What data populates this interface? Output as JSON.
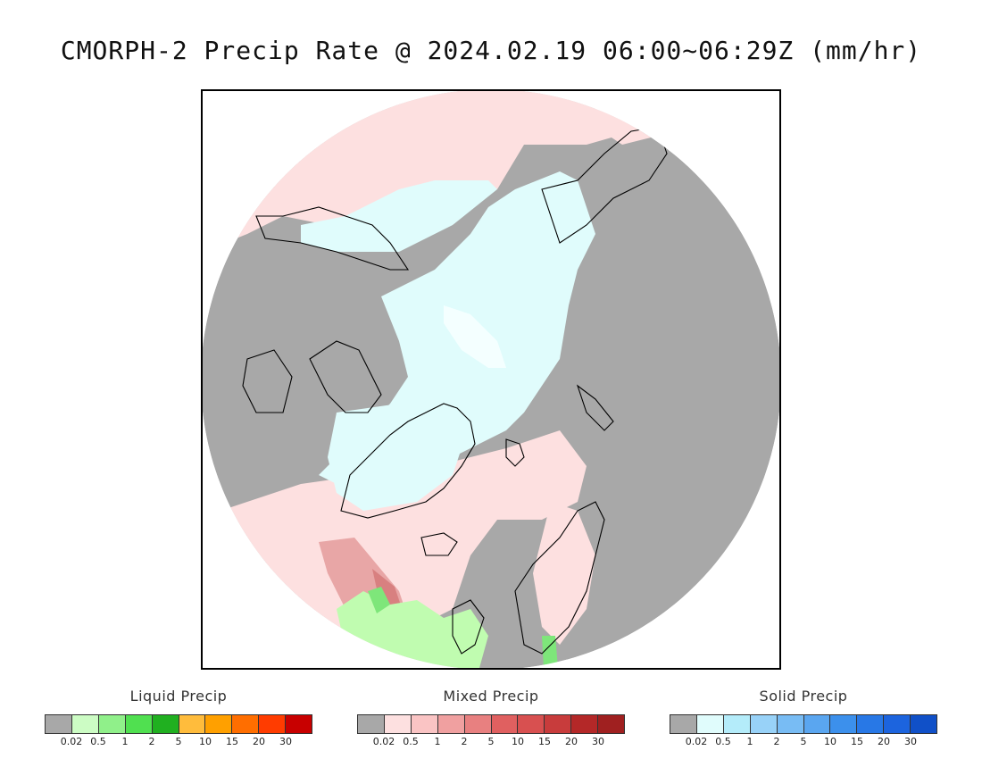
{
  "title": "CMORPH-2 Precip Rate @ 2024.02.19 06:00~06:29Z (mm/hr)",
  "map": {
    "projection": "north-polar-stereographic",
    "colors": {
      "no_precip": "#a8a8a8",
      "mixed_light": "#fde0e0",
      "mixed_moderate": "#f4b6b6",
      "mixed_heavy": "#d88080",
      "solid_light": "#e0fcfc",
      "solid_very_light": "#f4ffff",
      "liquid_light": "#c0fcb0",
      "liquid_moderate": "#7ee67a",
      "coastline": "#000000",
      "outside_disk": "#ffffff"
    }
  },
  "legends": [
    {
      "title": "Liquid Precip",
      "colors": [
        "#a8a8a8",
        "#ccfcc4",
        "#90f08a",
        "#50e050",
        "#20b020",
        "#ffbc3c",
        "#ffa000",
        "#ff6e00",
        "#ff3c00",
        "#c80000"
      ],
      "ticks": [
        "0.02",
        "0.5",
        "1",
        "2",
        "5",
        "10",
        "15",
        "20",
        "30"
      ]
    },
    {
      "title": "Mixed Precip",
      "colors": [
        "#a8a8a8",
        "#fde0e0",
        "#fac4c4",
        "#f0a0a0",
        "#e88080",
        "#e06060",
        "#d85050",
        "#c83c3c",
        "#b42828",
        "#a02020"
      ],
      "ticks": [
        "0.02",
        "0.5",
        "1",
        "2",
        "5",
        "10",
        "15",
        "20",
        "30"
      ]
    },
    {
      "title": "Solid Precip",
      "colors": [
        "#a8a8a8",
        "#e0fcfc",
        "#b4ecfa",
        "#98d2f8",
        "#78bcf4",
        "#5aa6f0",
        "#3c90ec",
        "#2878e6",
        "#1c64de",
        "#1050c8"
      ],
      "ticks": [
        "0.02",
        "0.5",
        "1",
        "2",
        "5",
        "10",
        "15",
        "20",
        "30"
      ]
    }
  ]
}
